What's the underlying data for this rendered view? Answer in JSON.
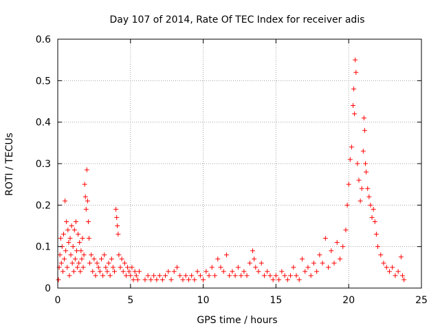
{
  "chart_data": {
    "type": "scatter",
    "title": "Day 107 of 2014, Rate Of TEC Index for receiver adis",
    "xlabel": "GPS time / hours",
    "ylabel": "ROTI / TECUs",
    "xlim": [
      0,
      25
    ],
    "ylim": [
      0,
      0.6
    ],
    "xticks": [
      0,
      5,
      10,
      15,
      20,
      25
    ],
    "xtick_labels": [
      "0",
      "5",
      "10",
      "15",
      "20",
      "25"
    ],
    "yticks": [
      0,
      0.1,
      0.2,
      0.3,
      0.4,
      0.5,
      0.6
    ],
    "ytick_labels": [
      "0",
      "0.1",
      "0.2",
      "0.3",
      "0.4",
      "0.5",
      "0.6"
    ],
    "grid": true,
    "marker": "+",
    "series": [
      {
        "name": "ROTI",
        "color": "#ff0000",
        "points": [
          [
            0.05,
            0.02
          ],
          [
            0.1,
            0.05
          ],
          [
            0.15,
            0.08
          ],
          [
            0.2,
            0.12
          ],
          [
            0.25,
            0.06
          ],
          [
            0.3,
            0.1
          ],
          [
            0.35,
            0.04
          ],
          [
            0.4,
            0.13
          ],
          [
            0.45,
            0.07
          ],
          [
            0.5,
            0.21
          ],
          [
            0.55,
            0.09
          ],
          [
            0.6,
            0.16
          ],
          [
            0.65,
            0.05
          ],
          [
            0.7,
            0.14
          ],
          [
            0.75,
            0.11
          ],
          [
            0.8,
            0.03
          ],
          [
            0.85,
            0.12
          ],
          [
            0.9,
            0.08
          ],
          [
            0.95,
            0.15
          ],
          [
            1.0,
            0.06
          ],
          [
            1.05,
            0.1
          ],
          [
            1.1,
            0.04
          ],
          [
            1.15,
            0.14
          ],
          [
            1.2,
            0.07
          ],
          [
            1.25,
            0.16
          ],
          [
            1.3,
            0.09
          ],
          [
            1.35,
            0.05
          ],
          [
            1.4,
            0.13
          ],
          [
            1.45,
            0.06
          ],
          [
            1.5,
            0.11
          ],
          [
            1.55,
            0.04
          ],
          [
            1.6,
            0.09
          ],
          [
            1.65,
            0.07
          ],
          [
            1.7,
            0.12
          ],
          [
            1.75,
            0.05
          ],
          [
            1.8,
            0.08
          ],
          [
            1.85,
            0.25
          ],
          [
            1.9,
            0.22
          ],
          [
            1.95,
            0.19
          ],
          [
            2.0,
            0.285
          ],
          [
            2.05,
            0.21
          ],
          [
            2.1,
            0.16
          ],
          [
            2.15,
            0.12
          ],
          [
            2.2,
            0.06
          ],
          [
            2.3,
            0.08
          ],
          [
            2.4,
            0.04
          ],
          [
            2.5,
            0.07
          ],
          [
            2.6,
            0.03
          ],
          [
            2.7,
            0.06
          ],
          [
            2.8,
            0.05
          ],
          [
            2.9,
            0.04
          ],
          [
            3.0,
            0.07
          ],
          [
            3.1,
            0.03
          ],
          [
            3.2,
            0.08
          ],
          [
            3.3,
            0.05
          ],
          [
            3.4,
            0.04
          ],
          [
            3.5,
            0.06
          ],
          [
            3.6,
            0.03
          ],
          [
            3.7,
            0.07
          ],
          [
            3.8,
            0.05
          ],
          [
            3.9,
            0.04
          ],
          [
            4.0,
            0.19
          ],
          [
            4.05,
            0.17
          ],
          [
            4.1,
            0.15
          ],
          [
            4.15,
            0.13
          ],
          [
            4.2,
            0.08
          ],
          [
            4.3,
            0.05
          ],
          [
            4.4,
            0.07
          ],
          [
            4.5,
            0.04
          ],
          [
            4.6,
            0.06
          ],
          [
            4.7,
            0.03
          ],
          [
            4.8,
            0.05
          ],
          [
            4.9,
            0.04
          ],
          [
            5.0,
            0.03
          ],
          [
            5.1,
            0.05
          ],
          [
            5.2,
            0.02
          ],
          [
            5.3,
            0.04
          ],
          [
            5.4,
            0.03
          ],
          [
            5.5,
            0.02
          ],
          [
            5.6,
            0.04
          ],
          [
            6.0,
            0.02
          ],
          [
            6.2,
            0.03
          ],
          [
            6.4,
            0.02
          ],
          [
            6.6,
            0.03
          ],
          [
            6.8,
            0.02
          ],
          [
            7.0,
            0.03
          ],
          [
            7.2,
            0.02
          ],
          [
            7.4,
            0.03
          ],
          [
            7.6,
            0.04
          ],
          [
            7.8,
            0.02
          ],
          [
            8.0,
            0.04
          ],
          [
            8.2,
            0.05
          ],
          [
            8.4,
            0.03
          ],
          [
            8.6,
            0.02
          ],
          [
            8.8,
            0.03
          ],
          [
            9.0,
            0.02
          ],
          [
            9.2,
            0.03
          ],
          [
            9.4,
            0.02
          ],
          [
            9.6,
            0.04
          ],
          [
            9.8,
            0.03
          ],
          [
            10.0,
            0.02
          ],
          [
            10.2,
            0.04
          ],
          [
            10.4,
            0.03
          ],
          [
            10.6,
            0.05
          ],
          [
            10.8,
            0.03
          ],
          [
            11.0,
            0.07
          ],
          [
            11.2,
            0.05
          ],
          [
            11.4,
            0.04
          ],
          [
            11.6,
            0.08
          ],
          [
            11.8,
            0.03
          ],
          [
            12.0,
            0.04
          ],
          [
            12.2,
            0.03
          ],
          [
            12.4,
            0.05
          ],
          [
            12.6,
            0.03
          ],
          [
            12.8,
            0.04
          ],
          [
            13.0,
            0.03
          ],
          [
            13.2,
            0.06
          ],
          [
            13.4,
            0.09
          ],
          [
            13.5,
            0.07
          ],
          [
            13.6,
            0.05
          ],
          [
            13.8,
            0.04
          ],
          [
            14.0,
            0.06
          ],
          [
            14.2,
            0.03
          ],
          [
            14.4,
            0.04
          ],
          [
            14.6,
            0.03
          ],
          [
            14.8,
            0.02
          ],
          [
            15.0,
            0.03
          ],
          [
            15.2,
            0.02
          ],
          [
            15.4,
            0.04
          ],
          [
            15.6,
            0.03
          ],
          [
            15.8,
            0.02
          ],
          [
            16.0,
            0.03
          ],
          [
            16.2,
            0.05
          ],
          [
            16.4,
            0.03
          ],
          [
            16.6,
            0.02
          ],
          [
            16.8,
            0.07
          ],
          [
            17.0,
            0.04
          ],
          [
            17.2,
            0.05
          ],
          [
            17.4,
            0.03
          ],
          [
            17.6,
            0.06
          ],
          [
            17.8,
            0.04
          ],
          [
            18.0,
            0.08
          ],
          [
            18.2,
            0.06
          ],
          [
            18.4,
            0.12
          ],
          [
            18.6,
            0.05
          ],
          [
            18.8,
            0.09
          ],
          [
            19.0,
            0.06
          ],
          [
            19.2,
            0.11
          ],
          [
            19.4,
            0.07
          ],
          [
            19.6,
            0.1
          ],
          [
            19.8,
            0.14
          ],
          [
            19.9,
            0.2
          ],
          [
            20.0,
            0.25
          ],
          [
            20.1,
            0.31
          ],
          [
            20.2,
            0.34
          ],
          [
            20.3,
            0.44
          ],
          [
            20.35,
            0.48
          ],
          [
            20.4,
            0.42
          ],
          [
            20.45,
            0.55
          ],
          [
            20.5,
            0.52
          ],
          [
            20.6,
            0.3
          ],
          [
            20.7,
            0.26
          ],
          [
            20.8,
            0.21
          ],
          [
            20.9,
            0.24
          ],
          [
            21.0,
            0.33
          ],
          [
            21.05,
            0.41
          ],
          [
            21.1,
            0.38
          ],
          [
            21.15,
            0.3
          ],
          [
            21.2,
            0.28
          ],
          [
            21.3,
            0.24
          ],
          [
            21.4,
            0.22
          ],
          [
            21.5,
            0.2
          ],
          [
            21.6,
            0.17
          ],
          [
            21.7,
            0.19
          ],
          [
            21.8,
            0.16
          ],
          [
            21.9,
            0.13
          ],
          [
            22.0,
            0.1
          ],
          [
            22.2,
            0.08
          ],
          [
            22.4,
            0.06
          ],
          [
            22.6,
            0.05
          ],
          [
            22.8,
            0.04
          ],
          [
            23.0,
            0.05
          ],
          [
            23.2,
            0.03
          ],
          [
            23.4,
            0.04
          ],
          [
            23.6,
            0.075
          ],
          [
            23.7,
            0.03
          ],
          [
            23.8,
            0.02
          ]
        ]
      }
    ]
  }
}
